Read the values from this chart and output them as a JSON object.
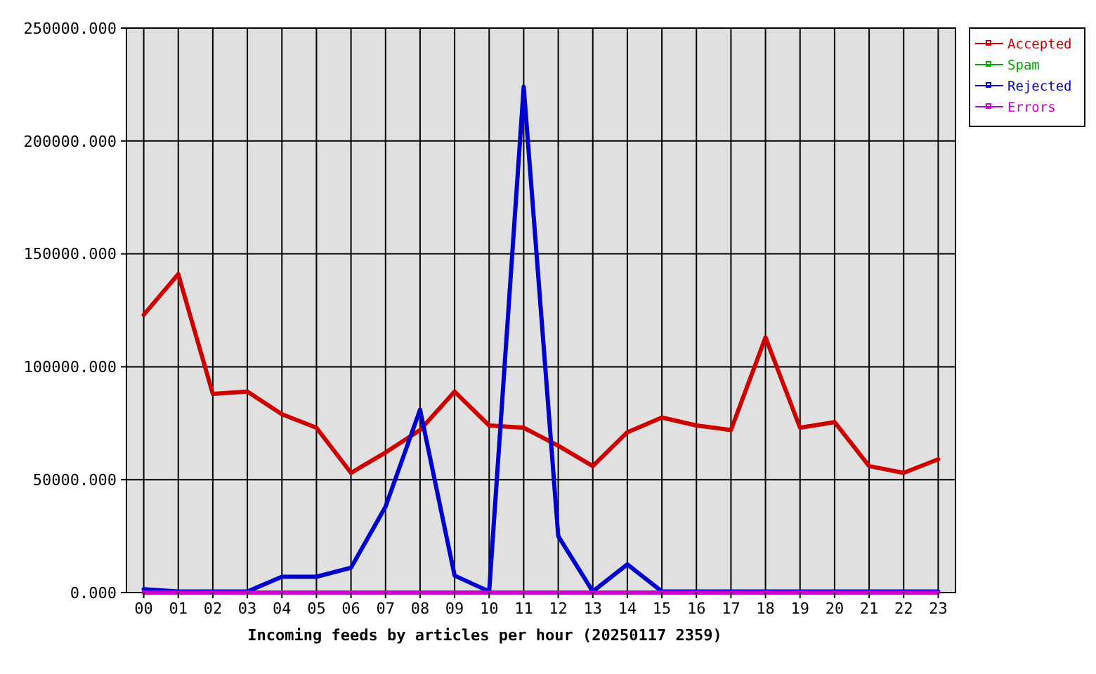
{
  "chart_data": {
    "type": "line",
    "xlabel": "Incoming feeds by articles per hour (20250117 2359)",
    "categories": [
      "00",
      "01",
      "02",
      "03",
      "04",
      "05",
      "06",
      "07",
      "08",
      "09",
      "10",
      "11",
      "12",
      "13",
      "14",
      "15",
      "16",
      "17",
      "18",
      "19",
      "20",
      "21",
      "22",
      "23"
    ],
    "series": [
      {
        "name": "Accepted",
        "color": "#cc0000",
        "values": [
          123000,
          141000,
          88000,
          89000,
          79000,
          73000,
          53000,
          62000,
          72000,
          89000,
          74000,
          73000,
          65000,
          56000,
          71000,
          77500,
          74000,
          72000,
          113000,
          73000,
          75500,
          56000,
          53000,
          59000
        ]
      },
      {
        "name": "Spam",
        "color": "#00aa00",
        "values": [
          null,
          null,
          null,
          null,
          null,
          null,
          null,
          null,
          null,
          null,
          null,
          null,
          null,
          null,
          null,
          null,
          null,
          null,
          null,
          null,
          null,
          null,
          null,
          null
        ]
      },
      {
        "name": "Rejected",
        "color": "#0000cc",
        "values": [
          1500,
          500,
          500,
          500,
          7000,
          7000,
          11000,
          38000,
          81000,
          7500,
          500,
          224000,
          25000,
          500,
          12500,
          500,
          500,
          500,
          500,
          500,
          500,
          500,
          500,
          500
        ]
      },
      {
        "name": "Errors",
        "color": "#cc00cc",
        "values": [
          0,
          0,
          0,
          0,
          0,
          0,
          0,
          0,
          0,
          0,
          0,
          0,
          0,
          0,
          0,
          0,
          0,
          0,
          0,
          0,
          0,
          0,
          0,
          0
        ]
      }
    ],
    "ylim": [
      0,
      250000
    ],
    "yticks": [
      {
        "value": 0,
        "label": "0.000"
      },
      {
        "value": 50000,
        "label": "50000.000"
      },
      {
        "value": 100000,
        "label": "100000.000"
      },
      {
        "value": 150000,
        "label": "150000.000"
      },
      {
        "value": 200000,
        "label": "200000.000"
      },
      {
        "value": 250000,
        "label": "250000.000"
      }
    ],
    "grid": true,
    "legend": "top right",
    "marker": "none"
  }
}
